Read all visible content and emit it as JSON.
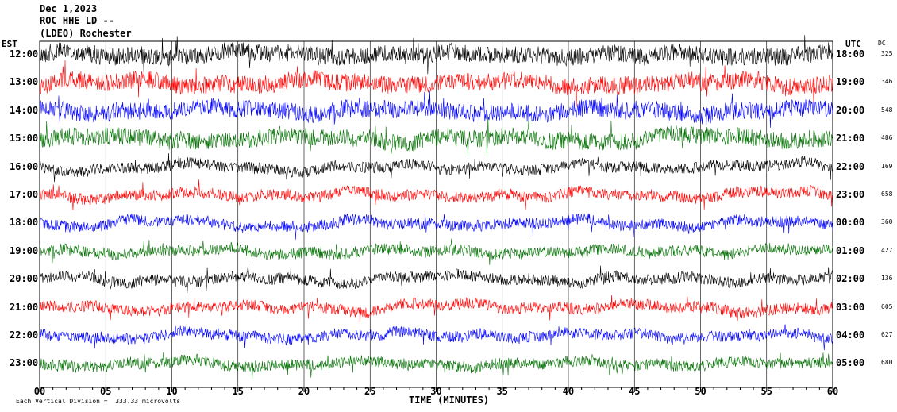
{
  "header": {
    "date": "Dec 1,2023",
    "station": "ROC HHE LD --",
    "network": "(LDEO) Rochester"
  },
  "left_tz": "EST",
  "right_tz": "UTC",
  "dc_header": "DC",
  "footer": {
    "scale": "Each Vertical Division =  333.33 microvolts",
    "x_title": "TIME (MINUTES)"
  },
  "colors": [
    "#000000",
    "#ff0000",
    "#0000ff",
    "#007000"
  ],
  "chart_data": {
    "type": "line",
    "xlabel": "TIME (MINUTES)",
    "xlim": [
      0,
      60
    ],
    "x_ticks": [
      "00",
      "05",
      "10",
      "15",
      "20",
      "25",
      "30",
      "35",
      "40",
      "45",
      "50",
      "55",
      "60"
    ],
    "rows": [
      {
        "left": "12:00",
        "right": "18:00",
        "dc": "325"
      },
      {
        "left": "13:00",
        "right": "19:00",
        "dc": "346"
      },
      {
        "left": "14:00",
        "right": "20:00",
        "dc": "548"
      },
      {
        "left": "15:00",
        "right": "21:00",
        "dc": "486"
      },
      {
        "left": "16:00",
        "right": "22:00",
        "dc": "169"
      },
      {
        "left": "17:00",
        "right": "23:00",
        "dc": "658"
      },
      {
        "left": "18:00",
        "right": "00:00",
        "dc": "360"
      },
      {
        "left": "19:00",
        "right": "01:00",
        "dc": "427"
      },
      {
        "left": "20:00",
        "right": "02:00",
        "dc": "136"
      },
      {
        "left": "21:00",
        "right": "03:00",
        "dc": "605"
      },
      {
        "left": "22:00",
        "right": "04:00",
        "dc": "627"
      },
      {
        "left": "23:00",
        "right": "05:00",
        "dc": "680"
      }
    ]
  }
}
